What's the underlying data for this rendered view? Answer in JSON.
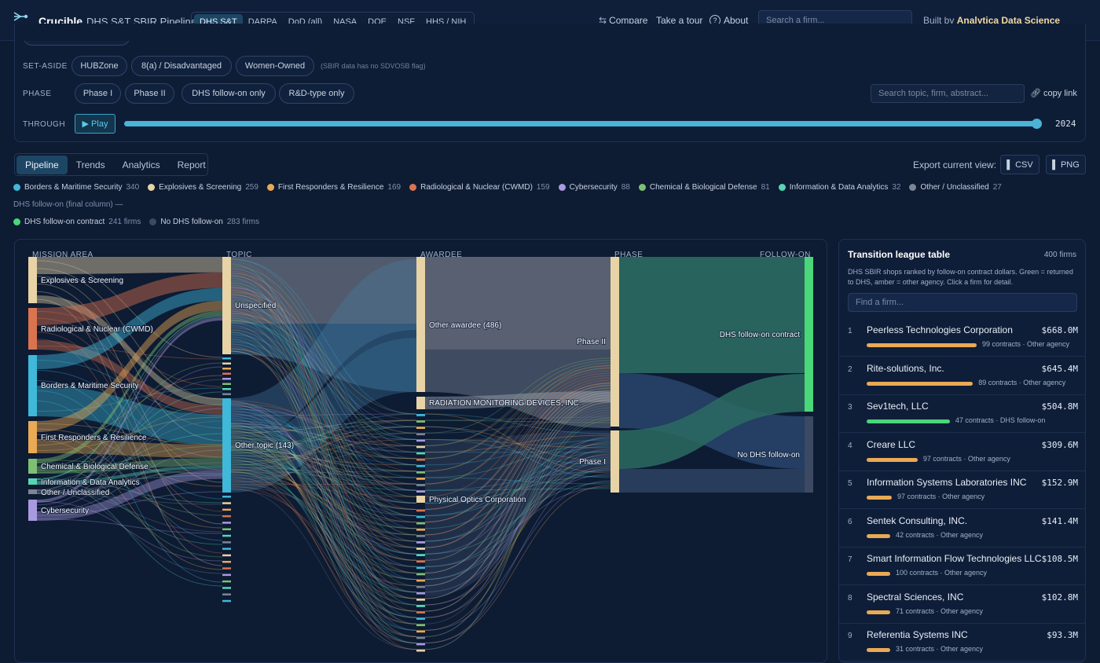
{
  "header": {
    "brand": "Crucible",
    "subtitle": "DHS S&T SBIR Pipeline",
    "agencies": [
      "DHS S&T",
      "DARPA",
      "DoD (all)",
      "NASA",
      "DOE",
      "NSF",
      "HHS / NIH"
    ],
    "active_agency": "DHS S&T",
    "compare": "Compare",
    "tour": "Take a tour",
    "about": "About",
    "search_placeholder": "Search a firm...",
    "built_by_prefix": "Built by",
    "built_by_name": "Analytica Data Science Solutions"
  },
  "filters": {
    "partial_chip": "Other / Unclassified",
    "setaside_label": "SET-ASIDE",
    "setaside_chips": [
      "HUBZone",
      "8(a) / Disadvantaged",
      "Women-Owned"
    ],
    "setaside_note": "(SBIR data has no SDVOSB flag)",
    "phase_label": "PHASE",
    "phase_chips": [
      "Phase I",
      "Phase II",
      "DHS follow-on only",
      "R&D-type only"
    ],
    "search_placeholder": "Search topic, firm, abstract...",
    "copy_link": "copy link",
    "through_label": "THROUGH",
    "play": "▶ Play",
    "year": "2024",
    "slider_fraction": 1.0
  },
  "view_tabs": [
    "Pipeline",
    "Trends",
    "Analytics",
    "Report"
  ],
  "active_view": "Pipeline",
  "export": {
    "label": "Export current view:",
    "csv": "CSV",
    "png": "PNG"
  },
  "legend": [
    {
      "name": "Borders & Maritime Security",
      "count": "340",
      "color": "#3fb8d9"
    },
    {
      "name": "Explosives & Screening",
      "count": "259",
      "color": "#e7d3a6"
    },
    {
      "name": "First Responders & Resilience",
      "count": "169",
      "color": "#e9a955"
    },
    {
      "name": "Radiological & Nuclear (CWMD)",
      "count": "159",
      "color": "#d9744f"
    },
    {
      "name": "Cybersecurity",
      "count": "88",
      "color": "#a99ae0"
    },
    {
      "name": "Chemical & Biological Defense",
      "count": "81",
      "color": "#7fbf74"
    },
    {
      "name": "Information & Data Analytics",
      "count": "32",
      "color": "#57d6b4"
    },
    {
      "name": "Other / Unclassified",
      "count": "27",
      "color": "#7b8594"
    }
  ],
  "followon_caption": "DHS follow-on (final column) —",
  "followon_legend": [
    {
      "name": "DHS follow-on contract",
      "count": "241 firms",
      "color": "#4ad77a"
    },
    {
      "name": "No DHS follow-on",
      "count": "283 firms",
      "color": "#3b4a62"
    }
  ],
  "sankey": {
    "columns": [
      "MISSION AREA",
      "TOPIC",
      "AWARDEE",
      "PHASE",
      "FOLLOW-ON"
    ],
    "mission_nodes": [
      "Explosives & Screening",
      "Radiological & Nuclear (CWMD)",
      "Borders & Maritime Security",
      "First Responders & Resilience",
      "Chemical & Biological Defense",
      "Information & Data Analytics",
      "Other / Unclassified",
      "Cybersecurity"
    ],
    "topic_nodes": [
      "Unspecified",
      "Other topic (143)"
    ],
    "awardee_nodes": [
      "Other awardee (486)",
      "RADIATION MONITORING DEVICES, INC.",
      "Physical Optics Corporation"
    ],
    "phase_nodes": [
      "Phase II",
      "Phase I"
    ],
    "followon_nodes": [
      "DHS follow-on contract",
      "No DHS follow-on"
    ]
  },
  "league": {
    "title": "Transition league table",
    "count": "400 firms",
    "description": "DHS SBIR shops ranked by follow-on contract dollars. Green = returned to DHS, amber = other agency. Click a firm for detail.",
    "find_placeholder": "Find a firm...",
    "rows": [
      {
        "rank": "1",
        "name": "Peerless Technologies Corporation",
        "amount": "$668.0M",
        "contracts": "99 contracts",
        "agency": "Other agency",
        "color": "#e9a955",
        "share": 1.0
      },
      {
        "rank": "2",
        "name": "Rite-solutions, Inc.",
        "amount": "$645.4M",
        "contracts": "89 contracts",
        "agency": "Other agency",
        "color": "#e9a955",
        "share": 0.966
      },
      {
        "rank": "3",
        "name": "Sev1tech, LLC",
        "amount": "$504.8M",
        "contracts": "47 contracts",
        "agency": "DHS follow-on",
        "color": "#4ad77a",
        "share": 0.756
      },
      {
        "rank": "4",
        "name": "Creare LLC",
        "amount": "$309.6M",
        "contracts": "97 contracts",
        "agency": "Other agency",
        "color": "#e9a955",
        "share": 0.463
      },
      {
        "rank": "5",
        "name": "Information Systems Laboratories INC",
        "amount": "$152.9M",
        "contracts": "97 contracts",
        "agency": "Other agency",
        "color": "#e9a955",
        "share": 0.229
      },
      {
        "rank": "6",
        "name": "Sentek Consulting, INC.",
        "amount": "$141.4M",
        "contracts": "42 contracts",
        "agency": "Other agency",
        "color": "#e9a955",
        "share": 0.212
      },
      {
        "rank": "7",
        "name": "Smart Information Flow Technologies LLC",
        "amount": "$108.5M",
        "contracts": "100 contracts",
        "agency": "Other agency",
        "color": "#e9a955",
        "share": 0.162
      },
      {
        "rank": "8",
        "name": "Spectral Sciences, INC",
        "amount": "$102.8M",
        "contracts": "71 contracts",
        "agency": "Other agency",
        "color": "#e9a955",
        "share": 0.154
      },
      {
        "rank": "9",
        "name": "Referentia Systems INC",
        "amount": "$93.3M",
        "contracts": "31 contracts",
        "agency": "Other agency",
        "color": "#e9a955",
        "share": 0.14
      }
    ]
  }
}
